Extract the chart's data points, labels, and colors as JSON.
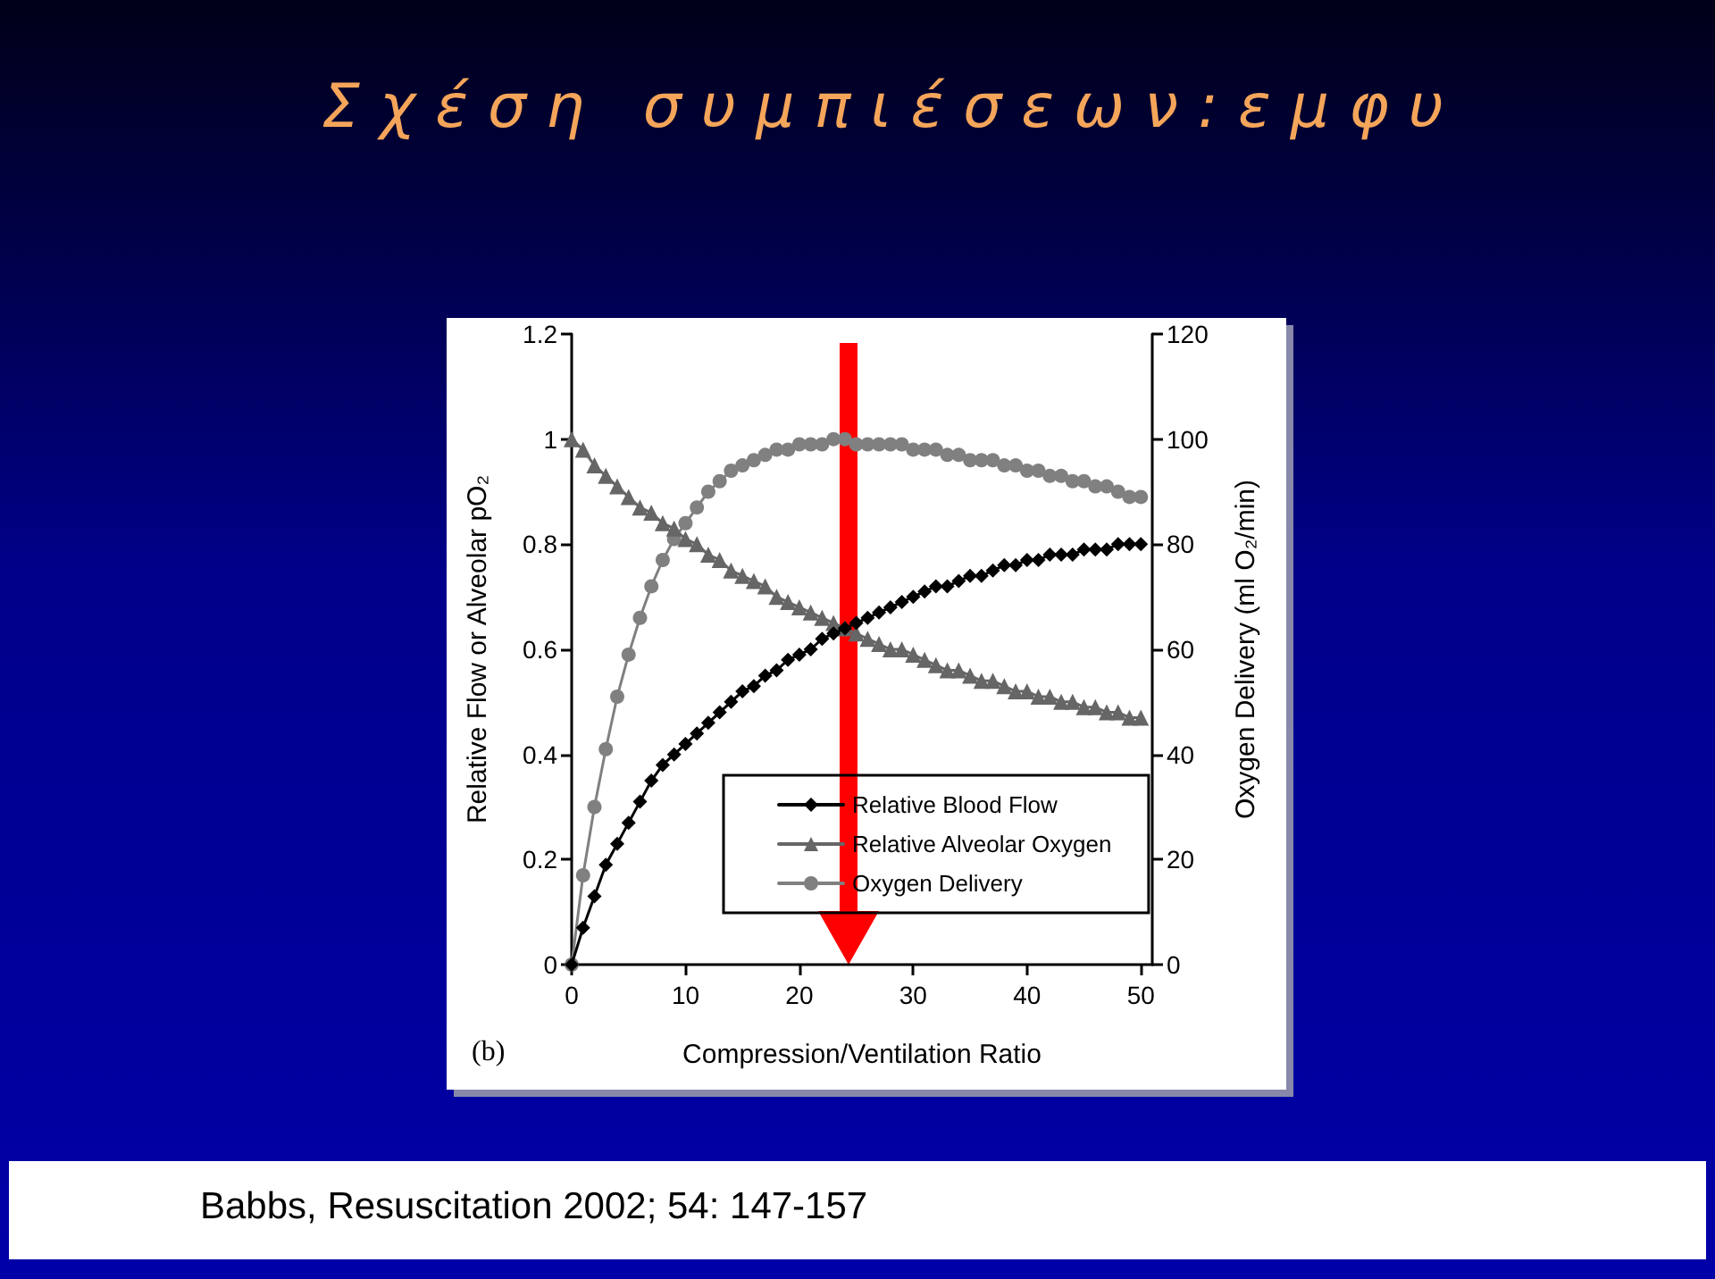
{
  "chart_data": {
    "type": "line",
    "title": "Σχέση συμπιέσεων:εμφυ",
    "xlabel": "Compression/Ventilation Ratio",
    "ylabel": "Relative Flow or Alveolar pO₂",
    "y2label": "Oxygen Delivery (ml O₂/min)",
    "annotations": [
      "(b)",
      "Babbs, Resuscitation 2002; 54: 147-157"
    ],
    "x": [
      0,
      1,
      2,
      3,
      4,
      5,
      6,
      7,
      8,
      9,
      10,
      11,
      12,
      13,
      14,
      15,
      16,
      17,
      18,
      19,
      20,
      21,
      22,
      23,
      24,
      25,
      26,
      27,
      28,
      29,
      30,
      31,
      32,
      33,
      34,
      35,
      36,
      37,
      38,
      39,
      40,
      41,
      42,
      43,
      44,
      45,
      46,
      47,
      48,
      49,
      50
    ],
    "series": [
      {
        "name": "Relative Blood Flow",
        "color": "#000000",
        "marker": "diamond",
        "values": [
          0,
          0.07,
          0.13,
          0.19,
          0.23,
          0.27,
          0.31,
          0.35,
          0.38,
          0.4,
          0.42,
          0.44,
          0.46,
          0.48,
          0.5,
          0.52,
          0.53,
          0.55,
          0.56,
          0.58,
          0.59,
          0.6,
          0.62,
          0.63,
          0.64,
          0.65,
          0.66,
          0.67,
          0.68,
          0.69,
          0.7,
          0.71,
          0.72,
          0.72,
          0.73,
          0.74,
          0.74,
          0.75,
          0.76,
          0.76,
          0.77,
          0.77,
          0.78,
          0.78,
          0.78,
          0.79,
          0.79,
          0.79,
          0.8,
          0.8,
          0.8
        ]
      },
      {
        "name": "Relative Alveolar Oxygen",
        "color": "#666666",
        "marker": "triangle",
        "values": [
          1,
          0.98,
          0.95,
          0.93,
          0.91,
          0.89,
          0.87,
          0.86,
          0.84,
          0.83,
          0.81,
          0.8,
          0.78,
          0.77,
          0.75,
          0.74,
          0.73,
          0.72,
          0.7,
          0.69,
          0.68,
          0.67,
          0.66,
          0.65,
          0.64,
          0.63,
          0.62,
          0.61,
          0.6,
          0.6,
          0.59,
          0.58,
          0.57,
          0.56,
          0.56,
          0.55,
          0.54,
          0.54,
          0.53,
          0.52,
          0.52,
          0.51,
          0.51,
          0.5,
          0.5,
          0.49,
          0.49,
          0.48,
          0.48,
          0.47,
          0.47
        ]
      },
      {
        "name": "Oxygen Delivery",
        "color": "#808080",
        "marker": "circle",
        "axis": "y2",
        "values": [
          0,
          17,
          30,
          41,
          51,
          59,
          66,
          72,
          77,
          81,
          84,
          87,
          90,
          92,
          94,
          95,
          96,
          97,
          98,
          98,
          99,
          99,
          99,
          100,
          100,
          99,
          99,
          99,
          99,
          99,
          98,
          98,
          98,
          97,
          97,
          96,
          96,
          96,
          95,
          95,
          94,
          94,
          93,
          93,
          92,
          92,
          91,
          91,
          90,
          89,
          89
        ]
      }
    ],
    "xlim": [
      0,
      51
    ],
    "xticks": [
      0,
      10,
      20,
      30,
      40,
      50
    ],
    "ylim": [
      0,
      1.2
    ],
    "yticks": [
      0,
      0.2,
      0.4,
      0.6,
      0.8,
      1,
      1.2
    ],
    "y2lim": [
      0,
      120
    ],
    "y2ticks": [
      0,
      20,
      40,
      60,
      80,
      100,
      120
    ],
    "grid": false,
    "legend": "bottom",
    "line_style": "solid"
  }
}
